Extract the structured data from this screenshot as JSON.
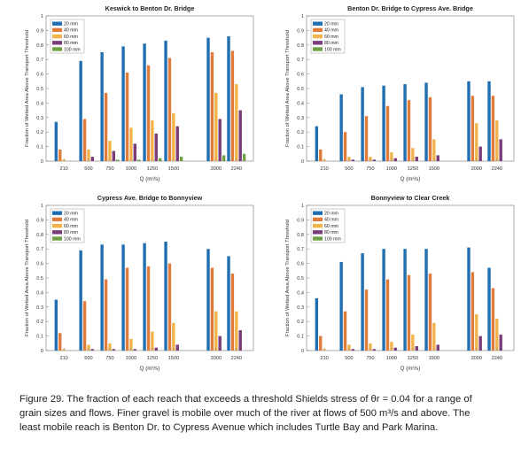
{
  "chart_data": [
    {
      "type": "bar",
      "title": "Keswick to Benton Dr. Bridge",
      "xlabel": "Q (m³/s)",
      "ylabel": "Fraction of Wetted Area Above Transport Threshold",
      "ylim": [
        0,
        1
      ],
      "yticks": [
        0,
        0.1,
        0.2,
        0.3,
        0.4,
        0.5,
        0.6,
        0.7,
        0.8,
        0.9,
        1
      ],
      "categories": [
        "210",
        "500",
        "750",
        "1000",
        "1250",
        "1500",
        "2000",
        "2240"
      ],
      "x": [
        210,
        500,
        750,
        1000,
        1250,
        1500,
        2000,
        2240
      ],
      "legend_position": "top-left",
      "series": [
        {
          "name": "20 mm",
          "color": "#1f6fb2",
          "values": [
            0.27,
            0.69,
            0.75,
            0.79,
            0.81,
            0.83,
            0.85,
            0.86
          ]
        },
        {
          "name": "40 mm",
          "color": "#e07b3c",
          "values": [
            0.08,
            0.29,
            0.47,
            0.61,
            0.66,
            0.71,
            0.75,
            0.76
          ]
        },
        {
          "name": "60 mm",
          "color": "#f2b44a",
          "values": [
            0.01,
            0.08,
            0.14,
            0.23,
            0.28,
            0.33,
            0.47,
            0.53
          ]
        },
        {
          "name": "80 mm",
          "color": "#7a3d7a",
          "values": [
            0.0,
            0.03,
            0.07,
            0.12,
            0.19,
            0.24,
            0.29,
            0.35
          ]
        },
        {
          "name": "100 mm",
          "color": "#6fa044",
          "values": [
            0.0,
            0.0,
            0.01,
            0.01,
            0.02,
            0.03,
            0.04,
            0.05
          ]
        }
      ]
    },
    {
      "type": "bar",
      "title": "Benton Dr. Bridge to Cypress Ave. Bridge",
      "xlabel": "Q (m³/s)",
      "ylabel": "Fraction of Wetted Area Above Transport Threshold",
      "ylim": [
        0,
        1
      ],
      "yticks": [
        0,
        0.1,
        0.2,
        0.3,
        0.4,
        0.5,
        0.6,
        0.7,
        0.8,
        0.9,
        1
      ],
      "categories": [
        "210",
        "500",
        "750",
        "1000",
        "1250",
        "1500",
        "2000",
        "2240"
      ],
      "x": [
        210,
        500,
        750,
        1000,
        1250,
        1500,
        2000,
        2240
      ],
      "legend_position": "top-left",
      "series": [
        {
          "name": "20 mm",
          "color": "#1f6fb2",
          "values": [
            0.24,
            0.46,
            0.51,
            0.52,
            0.53,
            0.54,
            0.55,
            0.55
          ]
        },
        {
          "name": "40 mm",
          "color": "#e07b3c",
          "values": [
            0.08,
            0.2,
            0.31,
            0.38,
            0.42,
            0.44,
            0.45,
            0.45
          ]
        },
        {
          "name": "60 mm",
          "color": "#f2b44a",
          "values": [
            0.01,
            0.03,
            0.03,
            0.06,
            0.09,
            0.15,
            0.26,
            0.28
          ]
        },
        {
          "name": "80 mm",
          "color": "#7a3d7a",
          "values": [
            0.0,
            0.01,
            0.01,
            0.02,
            0.03,
            0.04,
            0.1,
            0.15
          ]
        },
        {
          "name": "100 mm",
          "color": "#6fa044",
          "values": [
            0.0,
            0.0,
            0.0,
            0.0,
            0.0,
            0.0,
            0.0,
            0.0
          ]
        }
      ]
    },
    {
      "type": "bar",
      "title": "Cypress Ave. Bridge to Bonnyview",
      "xlabel": "Q (m³/s)",
      "ylabel": "Fraction of Wetted Area Above Transport Threshold",
      "ylim": [
        0,
        1
      ],
      "yticks": [
        0,
        0.1,
        0.2,
        0.3,
        0.4,
        0.5,
        0.6,
        0.7,
        0.8,
        0.9,
        1
      ],
      "categories": [
        "210",
        "500",
        "750",
        "1000",
        "1250",
        "1500",
        "2000",
        "2240"
      ],
      "x": [
        210,
        500,
        750,
        1000,
        1250,
        1500,
        2000,
        2240
      ],
      "legend_position": "top-left",
      "series": [
        {
          "name": "20 mm",
          "color": "#1f6fb2",
          "values": [
            0.35,
            0.69,
            0.73,
            0.73,
            0.74,
            0.75,
            0.7,
            0.65
          ]
        },
        {
          "name": "40 mm",
          "color": "#e07b3c",
          "values": [
            0.12,
            0.34,
            0.49,
            0.57,
            0.58,
            0.6,
            0.57,
            0.53
          ]
        },
        {
          "name": "60 mm",
          "color": "#f2b44a",
          "values": [
            0.01,
            0.04,
            0.05,
            0.08,
            0.13,
            0.19,
            0.27,
            0.27
          ]
        },
        {
          "name": "80 mm",
          "color": "#7a3d7a",
          "values": [
            0.0,
            0.01,
            0.01,
            0.01,
            0.02,
            0.04,
            0.1,
            0.14
          ]
        },
        {
          "name": "100 mm",
          "color": "#6fa044",
          "values": [
            0.0,
            0.0,
            0.0,
            0.0,
            0.0,
            0.0,
            0.0,
            0.0
          ]
        }
      ]
    },
    {
      "type": "bar",
      "title": "Bonnyview to Clear Creek",
      "xlabel": "Q (m³/s)",
      "ylabel": "Fraction of Wetted Area Above Transport Threshold",
      "ylim": [
        0,
        1
      ],
      "yticks": [
        0,
        0.1,
        0.2,
        0.3,
        0.4,
        0.5,
        0.6,
        0.7,
        0.8,
        0.9,
        1
      ],
      "categories": [
        "210",
        "500",
        "750",
        "1000",
        "1250",
        "1500",
        "2000",
        "2240"
      ],
      "x": [
        210,
        500,
        750,
        1000,
        1250,
        1500,
        2000,
        2240
      ],
      "legend_position": "top-left",
      "series": [
        {
          "name": "20 mm",
          "color": "#1f6fb2",
          "values": [
            0.36,
            0.61,
            0.67,
            0.7,
            0.7,
            0.7,
            0.71,
            0.57
          ]
        },
        {
          "name": "40 mm",
          "color": "#e07b3c",
          "values": [
            0.1,
            0.27,
            0.42,
            0.49,
            0.52,
            0.53,
            0.54,
            0.43
          ]
        },
        {
          "name": "60 mm",
          "color": "#f2b44a",
          "values": [
            0.01,
            0.04,
            0.05,
            0.06,
            0.11,
            0.19,
            0.25,
            0.22
          ]
        },
        {
          "name": "80 mm",
          "color": "#7a3d7a",
          "values": [
            0.0,
            0.01,
            0.01,
            0.02,
            0.03,
            0.04,
            0.1,
            0.11
          ]
        },
        {
          "name": "100 mm",
          "color": "#6fa044",
          "values": [
            0.0,
            0.0,
            0.0,
            0.0,
            0.0,
            0.0,
            0.0,
            0.0
          ]
        }
      ]
    }
  ],
  "caption": {
    "line1": "Figure 29. The fraction of each reach that exceeds a threshold Shields stress of θr = 0.04 for a range of",
    "line2": "grain sizes and flows. Finer gravel is mobile over much of the river at flows of 500 m³/s and above. The",
    "line3": "least mobile reach is Benton Dr. to Cypress Avenue which includes Turtle Bay and Park Marina."
  }
}
